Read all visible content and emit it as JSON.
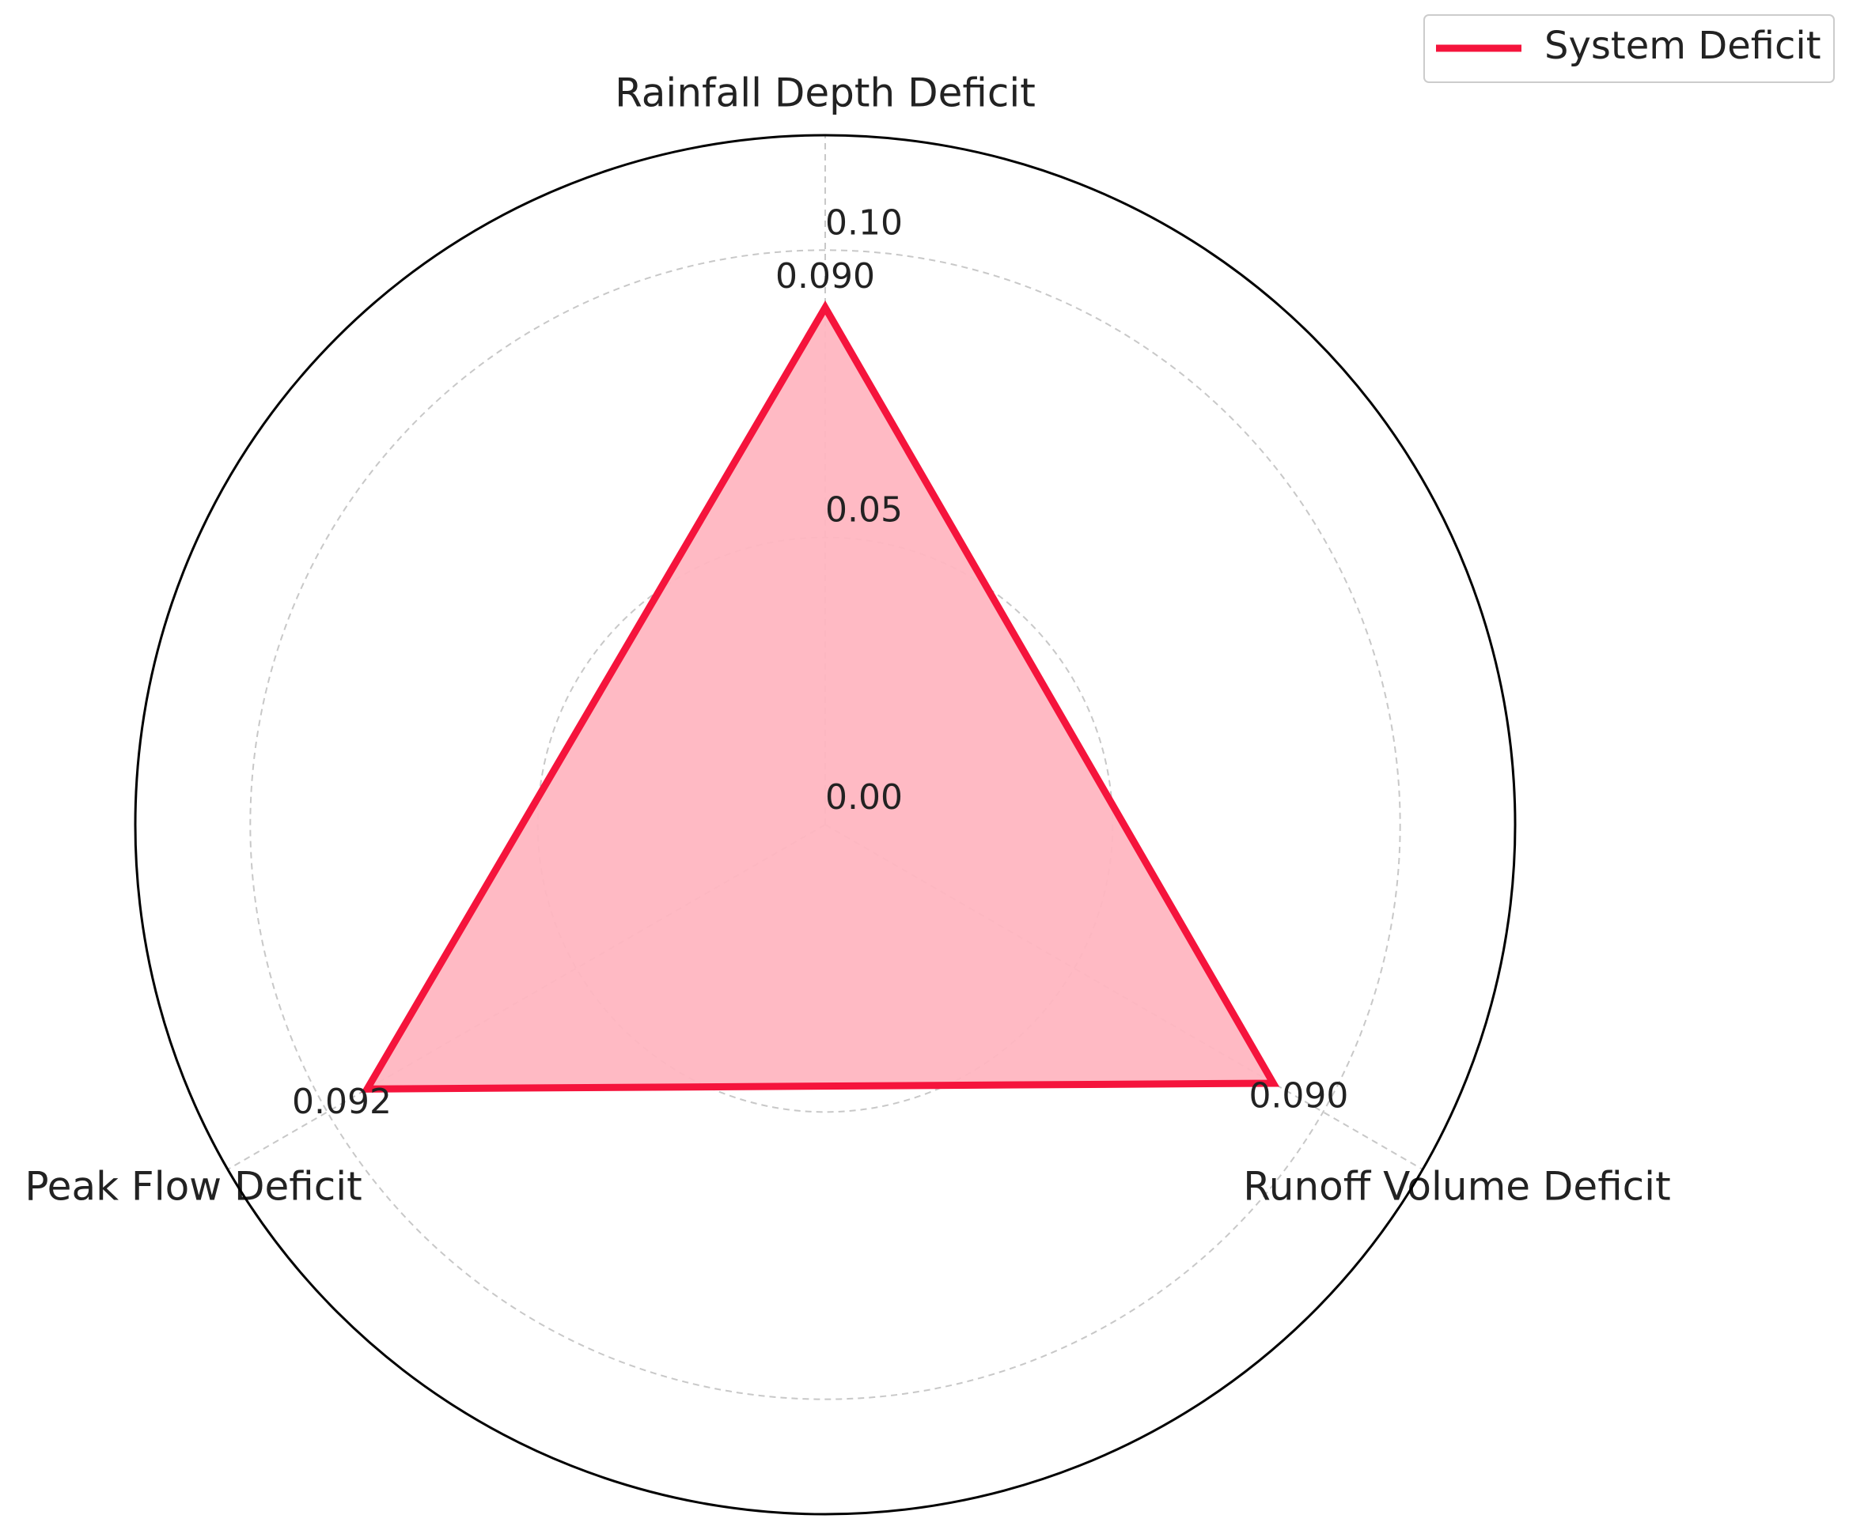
{
  "chart_data": {
    "type": "radar",
    "categories": [
      "Rainfall Depth Deficit",
      "Runoff Volume Deficit",
      "Peak Flow Deficit"
    ],
    "series": [
      {
        "name": "System Deficit",
        "color": "#f5143c",
        "fill": "#ffb6c1",
        "values": [
          0.09,
          0.09,
          0.092
        ],
        "value_labels": [
          "0.090",
          "0.090",
          "0.092"
        ]
      }
    ],
    "ylim": [
      0,
      0.12
    ],
    "yticks": [
      {
        "value": 0,
        "label": "0.00"
      },
      {
        "value": 0.05,
        "label": "0.05"
      },
      {
        "value": 0.1,
        "label": "0.10"
      }
    ],
    "grid": true,
    "legend": "upper right"
  }
}
